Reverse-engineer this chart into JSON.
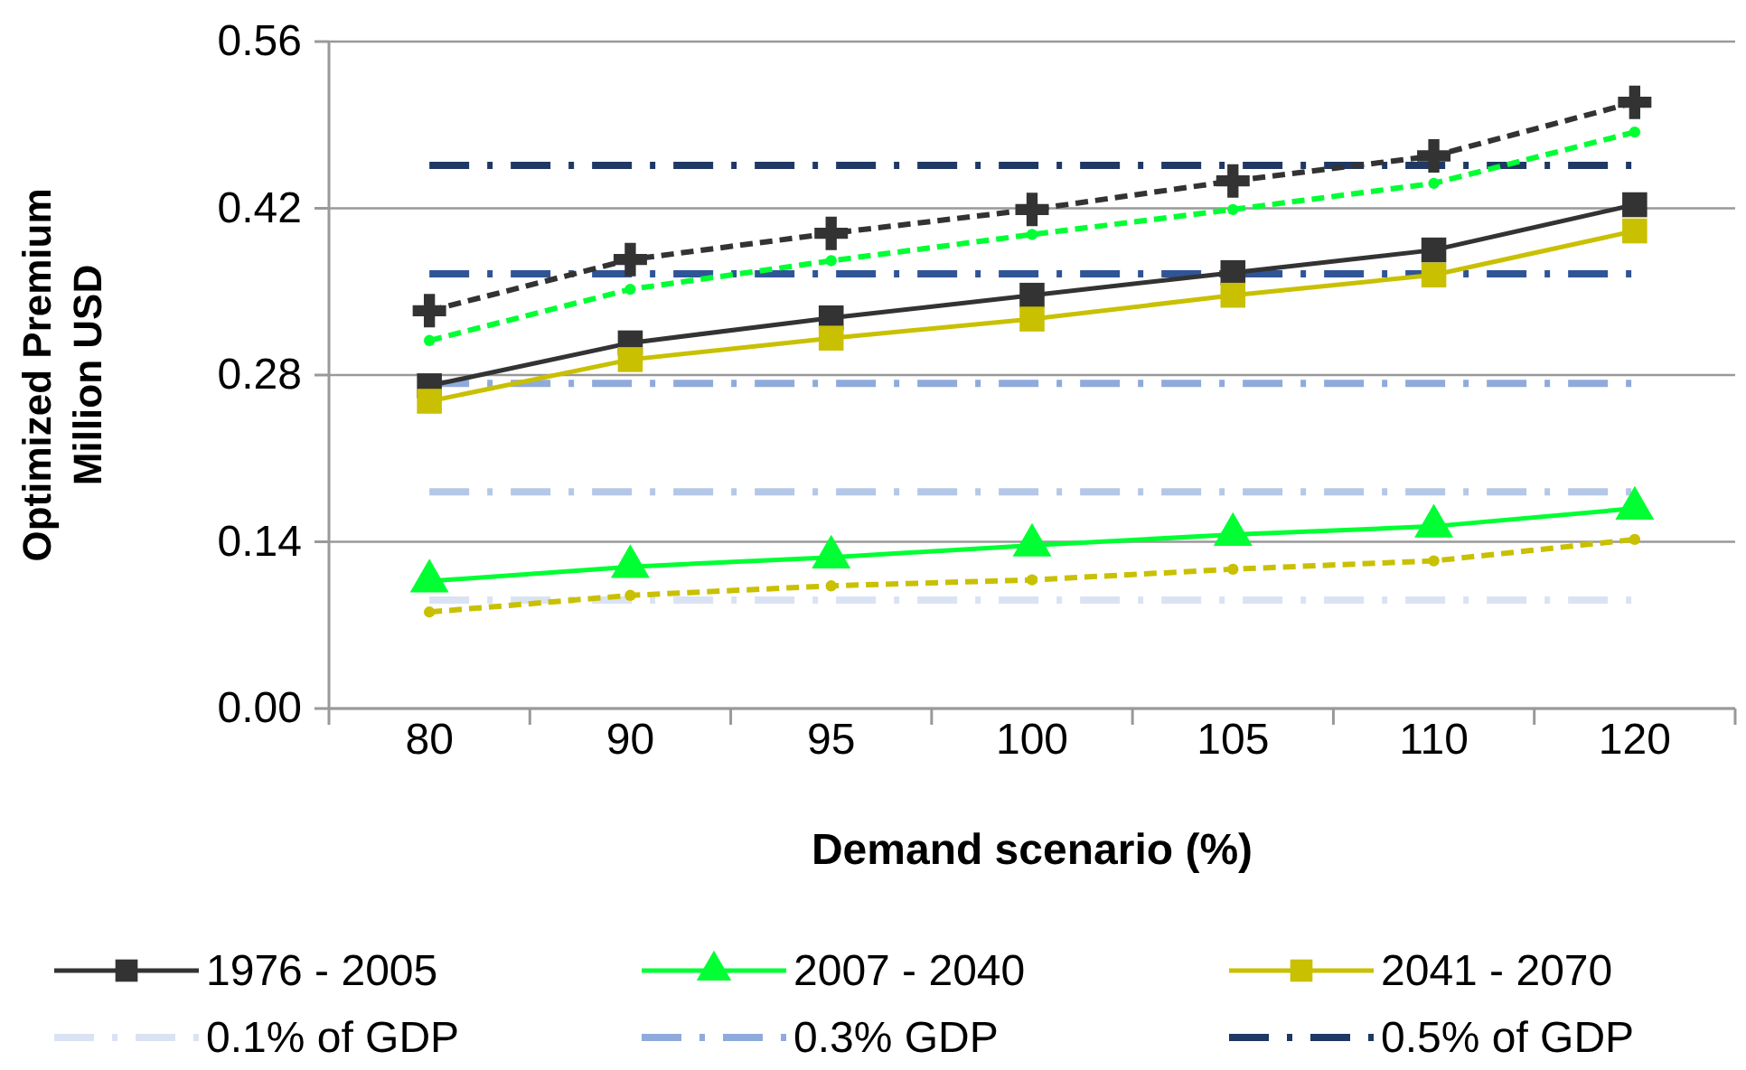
{
  "chart_data": {
    "type": "line",
    "xlabel": "Demand scenario (%)",
    "ylabel": "Optimized Premium\nMillion USD",
    "categories": [
      "80",
      "90",
      "95",
      "100",
      "105",
      "110",
      "120"
    ],
    "ylim": [
      0,
      0.56
    ],
    "yticks": [
      {
        "value": 0,
        "label": "0.00"
      },
      {
        "value": 0.14,
        "label": "0.14"
      },
      {
        "value": 0.28,
        "label": "0.28"
      },
      {
        "value": 0.42,
        "label": "0.42"
      },
      {
        "value": 0.56,
        "label": "0.56"
      }
    ],
    "grid": "y",
    "legend": "bottom",
    "series": [
      {
        "name": "1976 - 2005",
        "color": "#333333",
        "marker": "square",
        "line_style": "solid",
        "values": [
          0.271,
          0.307,
          0.328,
          0.347,
          0.366,
          0.385,
          0.423
        ]
      },
      {
        "name": "2007 - 2040",
        "color": "#00ff33",
        "marker": "triangle",
        "line_style": "solid",
        "values": [
          0.107,
          0.119,
          0.127,
          0.137,
          0.146,
          0.153,
          0.168
        ]
      },
      {
        "name": "2041 - 2070",
        "color": "#c8c000",
        "marker": "square",
        "line_style": "solid",
        "values": [
          0.258,
          0.293,
          0.311,
          0.327,
          0.347,
          0.364,
          0.401
        ]
      },
      {
        "name": "0.1% of GDP",
        "color": "#dae3f3",
        "marker": "none",
        "line_style": "dashdot",
        "values": [
          0.091,
          0.091,
          0.091,
          0.091,
          0.091,
          0.091,
          0.091
        ]
      },
      {
        "name": "0.3% GDP",
        "color": "#8faadc",
        "marker": "none",
        "line_style": "dashdot",
        "values": [
          0.273,
          0.273,
          0.273,
          0.273,
          0.273,
          0.273,
          0.273
        ]
      },
      {
        "name": "0.5% of GDP",
        "color": "#1f3864",
        "marker": "none",
        "line_style": "dashdot",
        "values": [
          0.456,
          0.456,
          0.456,
          0.456,
          0.456,
          0.456,
          0.456
        ]
      },
      {
        "color": "#b4c7e7",
        "marker": "none",
        "line_style": "dashdot",
        "values": [
          0.182,
          0.182,
          0.182,
          0.182,
          0.182,
          0.182,
          0.182
        ]
      },
      {
        "color": "#2f5597",
        "marker": "none",
        "line_style": "dashdot",
        "values": [
          0.365,
          0.365,
          0.365,
          0.365,
          0.365,
          0.365,
          0.365
        ]
      },
      {
        "color": "#333333",
        "marker": "cross",
        "line_style": "dashed",
        "values": [
          0.334,
          0.377,
          0.399,
          0.419,
          0.443,
          0.464,
          0.509
        ]
      },
      {
        "color": "#00ff33",
        "marker": "circle",
        "line_style": "dashed",
        "values": [
          0.309,
          0.352,
          0.376,
          0.398,
          0.419,
          0.441,
          0.484
        ]
      },
      {
        "color": "#c8c000",
        "marker": "circle",
        "line_style": "dashed",
        "values": [
          0.081,
          0.095,
          0.103,
          0.108,
          0.117,
          0.124,
          0.142
        ]
      }
    ]
  }
}
